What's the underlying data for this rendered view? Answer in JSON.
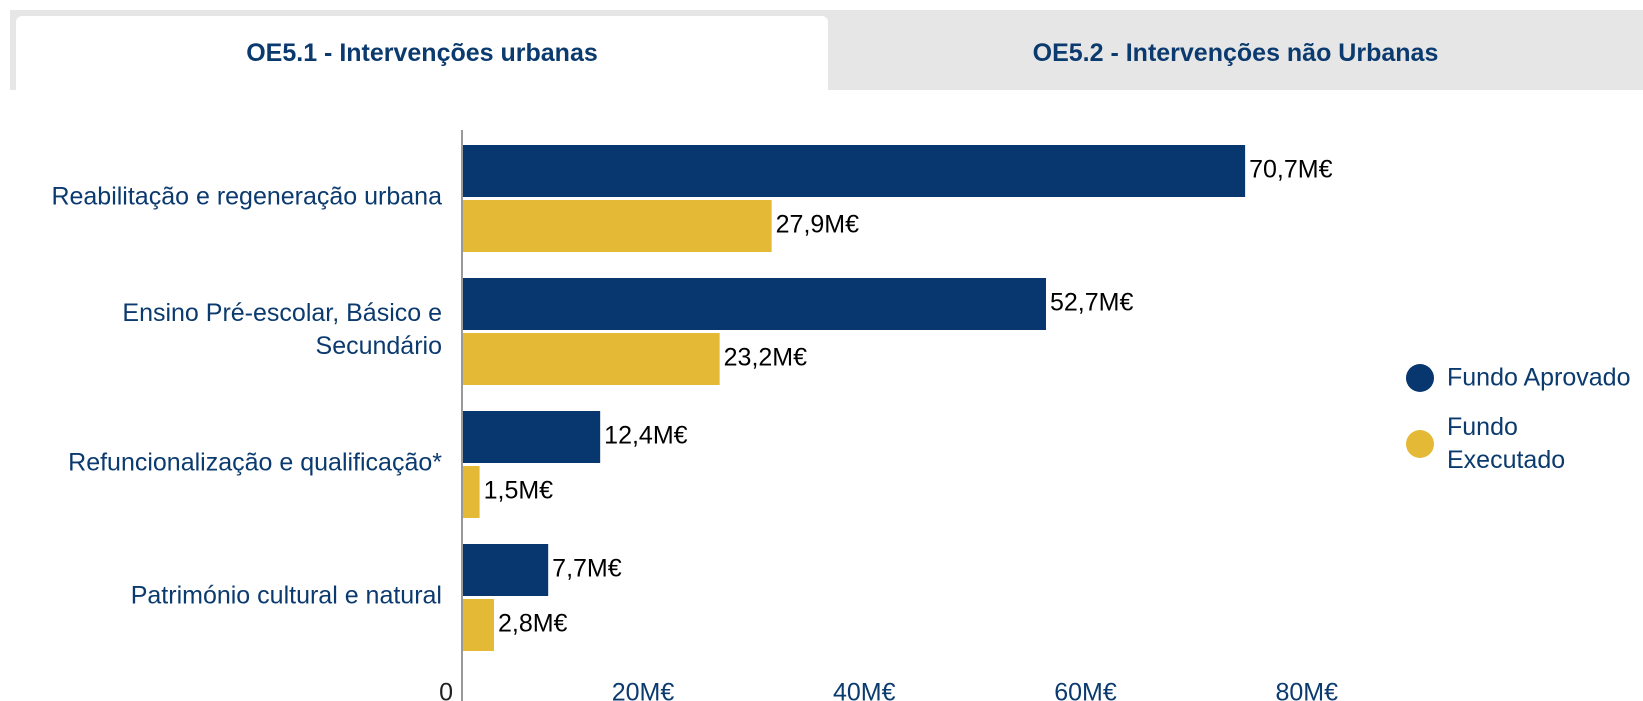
{
  "tabs": [
    "OE5.1 - Intervenções urbanas",
    "OE5.2 - Intervenções não Urbanas"
  ],
  "chart_data": {
    "type": "hbar",
    "categories": [
      "Reabilitação e regeneração urbana",
      "Ensino Pré-escolar, Básico e Secundário",
      "Refuncionalização e qualificação*",
      "Património cultural e natural"
    ],
    "series": [
      {
        "name": "Fundo Aprovado",
        "color": "#08366f",
        "values": [
          70.7,
          52.7,
          12.4,
          7.7
        ],
        "value_labels": [
          "70,7M€",
          "52,7M€",
          "12,4M€",
          "7,7M€"
        ]
      },
      {
        "name": "Fundo Executado",
        "color": "#e3b935",
        "values": [
          27.9,
          23.2,
          1.5,
          2.8
        ],
        "value_labels": [
          "27,9M€",
          "23,2M€",
          "1,5M€",
          "2,8M€"
        ]
      }
    ],
    "xlim": [
      0,
      80
    ],
    "xticks": [
      0,
      {
        "value": 20,
        "label": "20M€"
      },
      {
        "value": 40,
        "label": "40M€"
      },
      {
        "value": 60,
        "label": "60M€"
      },
      {
        "value": 80,
        "label": "80M€"
      }
    ],
    "legend": "right"
  }
}
